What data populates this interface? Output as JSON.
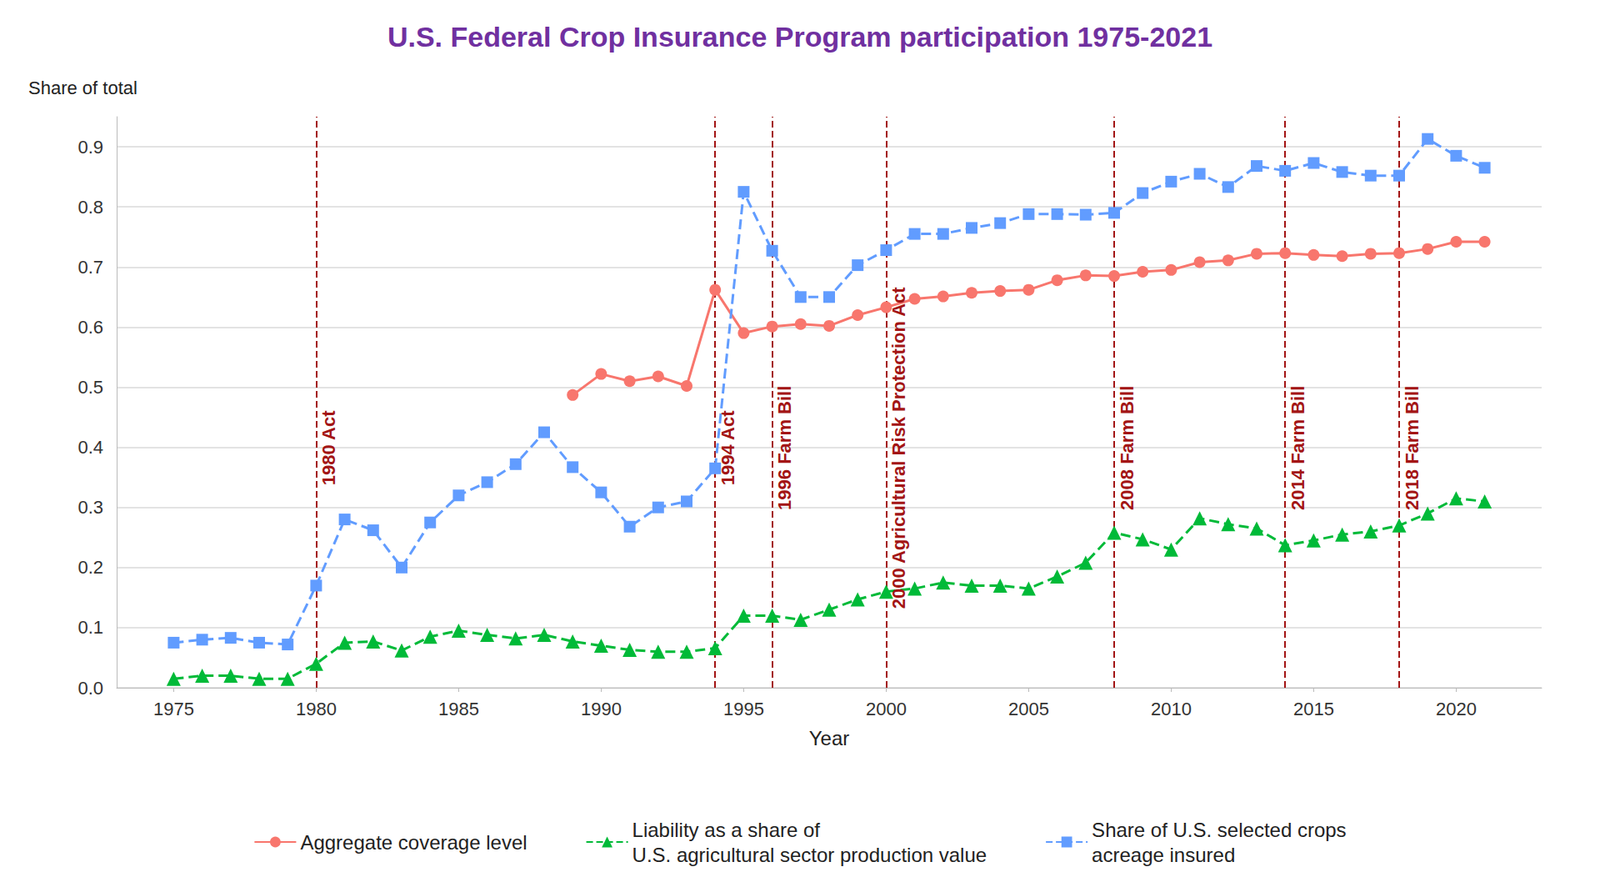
{
  "chart_data": {
    "type": "line",
    "title": "U.S. Federal Crop Insurance Program participation 1975-2021",
    "y_label": "Share of total",
    "x_label": "Year",
    "x": [
      1975,
      1976,
      1977,
      1978,
      1979,
      1980,
      1981,
      1982,
      1983,
      1984,
      1985,
      1986,
      1987,
      1988,
      1989,
      1990,
      1991,
      1992,
      1993,
      1994,
      1995,
      1996,
      1997,
      1998,
      1999,
      2000,
      2001,
      2002,
      2003,
      2004,
      2005,
      2006,
      2007,
      2008,
      2009,
      2010,
      2011,
      2012,
      2013,
      2014,
      2015,
      2016,
      2017,
      2018,
      2019,
      2020,
      2021
    ],
    "series": [
      {
        "name": "Aggregate coverage level",
        "color": "#F8766D",
        "marker": "circle",
        "line_style": "solid",
        "values": [
          null,
          null,
          null,
          null,
          null,
          null,
          null,
          null,
          null,
          null,
          null,
          null,
          null,
          null,
          0.487,
          0.522,
          0.51,
          0.518,
          0.502,
          0.662,
          0.59,
          0.601,
          0.605,
          0.602,
          0.62,
          0.633,
          0.647,
          0.651,
          0.657,
          0.66,
          0.662,
          0.678,
          0.686,
          0.685,
          0.692,
          0.695,
          0.708,
          0.711,
          0.722,
          0.723,
          0.72,
          0.718,
          0.722,
          0.723,
          0.73,
          0.742,
          0.742
        ]
      },
      {
        "name": "Liability as a share of\nU.S. agricultural sector production value",
        "color": "#00BA38",
        "marker": "triangle",
        "line_style": "dashed",
        "values": [
          0.015,
          0.02,
          0.02,
          0.015,
          0.015,
          0.04,
          0.075,
          0.077,
          0.062,
          0.085,
          0.095,
          0.088,
          0.082,
          0.088,
          0.077,
          0.07,
          0.063,
          0.06,
          0.06,
          0.066,
          0.12,
          0.12,
          0.113,
          0.13,
          0.147,
          0.16,
          0.165,
          0.175,
          0.17,
          0.17,
          0.165,
          0.185,
          0.208,
          0.258,
          0.247,
          0.23,
          0.282,
          0.272,
          0.265,
          0.237,
          0.245,
          0.255,
          0.26,
          0.27,
          0.29,
          0.315,
          0.31
        ]
      },
      {
        "name": "Share of U.S. selected crops\nacreage insured",
        "color": "#619CFF",
        "marker": "square",
        "line_style": "dashed",
        "values": [
          0.075,
          0.08,
          0.083,
          0.075,
          0.072,
          0.17,
          0.28,
          0.262,
          0.2,
          0.275,
          0.32,
          0.342,
          0.372,
          0.425,
          0.367,
          0.325,
          0.268,
          0.3,
          0.31,
          0.365,
          0.825,
          0.727,
          0.65,
          0.65,
          0.703,
          0.728,
          0.755,
          0.755,
          0.765,
          0.773,
          0.788,
          0.788,
          0.787,
          0.79,
          0.823,
          0.842,
          0.855,
          0.833,
          0.868,
          0.86,
          0.873,
          0.858,
          0.852,
          0.852,
          0.913,
          0.885,
          0.865
        ]
      }
    ],
    "annotations": [
      {
        "x": 1980,
        "text": "1980 Act"
      },
      {
        "x": 1994,
        "text": "1994 Act"
      },
      {
        "x": 1996,
        "text": "1996 Farm Bill"
      },
      {
        "x": 2000,
        "text": "2000 Agricultural Risk Protection Act"
      },
      {
        "x": 2008,
        "text": "2008 Farm Bill"
      },
      {
        "x": 2014,
        "text": "2014 Farm Bill"
      },
      {
        "x": 2018,
        "text": "2018 Farm Bill"
      }
    ],
    "xlim": [
      1973,
      2023
    ],
    "xticks": [
      1975,
      1980,
      1985,
      1990,
      1995,
      2000,
      2005,
      2010,
      2015,
      2020
    ],
    "ylim": [
      0,
      0.95
    ],
    "yticks": [
      {
        "value": 0,
        "label": "0.0"
      },
      0.1,
      0.2,
      0.3,
      0.4,
      0.5,
      0.6,
      0.7,
      0.8,
      0.9
    ],
    "grid": "y",
    "legend": "bottom"
  }
}
